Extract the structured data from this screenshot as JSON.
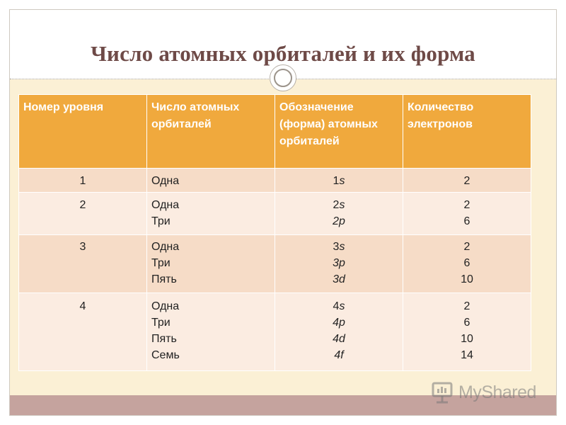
{
  "slide": {
    "title": "Число атомных орбиталей и их форма"
  },
  "table": {
    "headers": [
      "Номер уровня",
      "Число атомных орбиталей",
      "Обозначение (форма) атомных орбиталей",
      "Количество электронов"
    ],
    "rows": [
      {
        "level": "1",
        "counts": [
          "Одна"
        ],
        "orbitals": [
          [
            "1",
            "s"
          ]
        ],
        "electrons": [
          "2"
        ]
      },
      {
        "level": "2",
        "counts": [
          "Одна",
          "Три"
        ],
        "orbitals": [
          [
            "2",
            "s"
          ],
          [
            "2",
            "p"
          ]
        ],
        "electrons": [
          "2",
          "6"
        ]
      },
      {
        "level": "3",
        "counts": [
          "Одна",
          "Три",
          "Пять"
        ],
        "orbitals": [
          [
            "3",
            "s"
          ],
          [
            "3",
            "p"
          ],
          [
            "3",
            "d"
          ]
        ],
        "electrons": [
          "2",
          "6",
          "10"
        ]
      },
      {
        "level": "4",
        "counts": [
          "Одна",
          "Три",
          "Пять",
          "Семь"
        ],
        "orbitals": [
          [
            "4",
            "s"
          ],
          [
            "4",
            "p"
          ],
          [
            "4",
            "d"
          ],
          [
            "4",
            "f"
          ]
        ],
        "electrons": [
          "2",
          "6",
          "10",
          "14"
        ]
      }
    ]
  },
  "watermark": {
    "text": "MyShared"
  },
  "colors": {
    "title": "#6e4a47",
    "header_bg": "#f0a93d",
    "row_dark": "#f6dcc7",
    "row_light": "#fbece1",
    "content_bg": "#fbf0d5",
    "bottom_bar": "#c5a39e"
  }
}
